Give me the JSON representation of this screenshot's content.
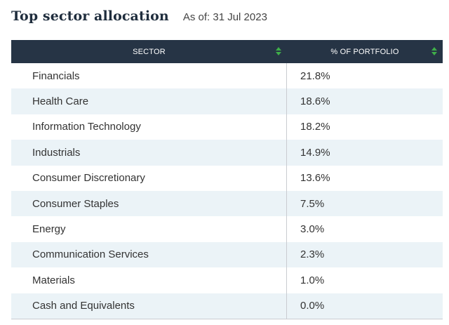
{
  "header": {
    "title": "Top sector allocation",
    "as_of": "As of: 31 Jul 2023"
  },
  "table": {
    "columns": [
      "SECTOR",
      "% OF PORTFOLIO"
    ],
    "rows": [
      {
        "sector": "Financials",
        "pct": "21.8%"
      },
      {
        "sector": "Health Care",
        "pct": "18.6%"
      },
      {
        "sector": "Information Technology",
        "pct": "18.2%"
      },
      {
        "sector": "Industrials",
        "pct": "14.9%"
      },
      {
        "sector": "Consumer Discretionary",
        "pct": "13.6%"
      },
      {
        "sector": "Consumer Staples",
        "pct": "7.5%"
      },
      {
        "sector": "Energy",
        "pct": "3.0%"
      },
      {
        "sector": "Communication Services",
        "pct": "2.3%"
      },
      {
        "sector": "Materials",
        "pct": "1.0%"
      },
      {
        "sector": "Cash and Equivalents",
        "pct": "0.0%"
      }
    ]
  },
  "colors": {
    "header_bg": "#263445",
    "sort_icon": "#3fae49",
    "stripe": "#ebf3f7"
  },
  "icons": {
    "sort": "sort-arrows-icon"
  }
}
